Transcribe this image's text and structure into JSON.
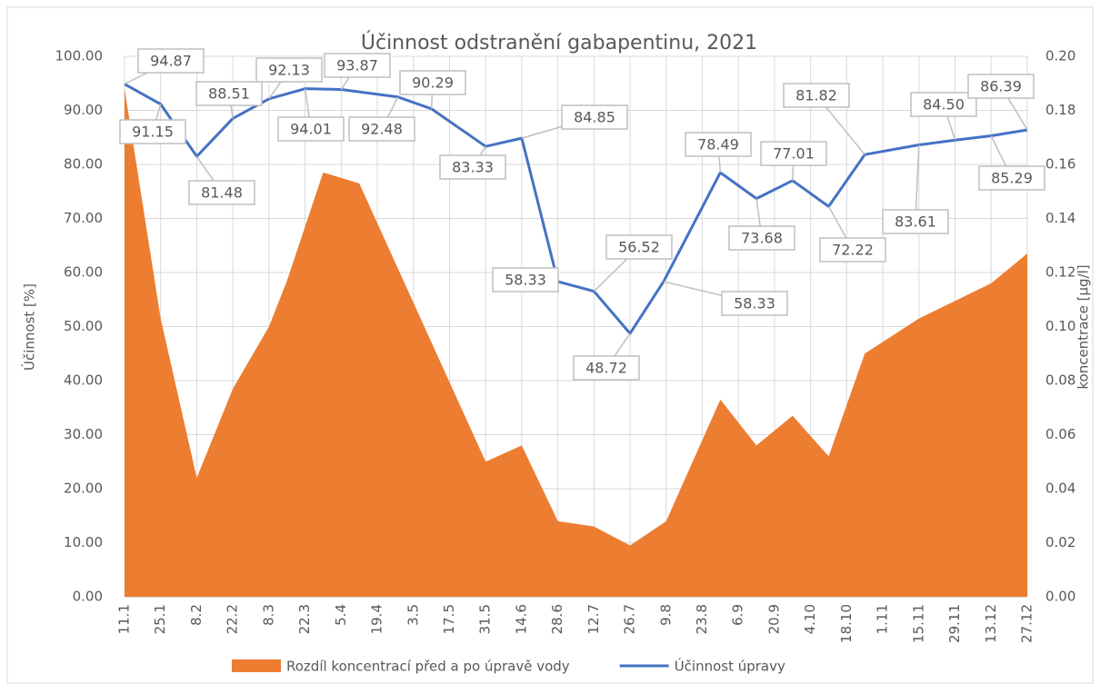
{
  "chart_data": {
    "type": "combo",
    "title": "Účinnost odstranění gabapentinu, 2021",
    "y_label": "Účinnost  [%]",
    "y2_label": "koncentrace [µg/l]",
    "xlim": [
      11,
      361
    ],
    "xticks": [
      {
        "value": 11,
        "label": "11.1"
      },
      {
        "value": 25,
        "label": "25.1"
      },
      {
        "value": 39,
        "label": "8.2"
      },
      {
        "value": 53,
        "label": "22.2"
      },
      {
        "value": 67,
        "label": "8.3"
      },
      {
        "value": 81,
        "label": "22.3"
      },
      {
        "value": 95,
        "label": "5.4"
      },
      {
        "value": 109,
        "label": "19.4"
      },
      {
        "value": 123,
        "label": "3.5"
      },
      {
        "value": 137,
        "label": "17.5"
      },
      {
        "value": 151,
        "label": "31.5"
      },
      {
        "value": 165,
        "label": "14.6"
      },
      {
        "value": 179,
        "label": "28.6"
      },
      {
        "value": 193,
        "label": "12.7"
      },
      {
        "value": 207,
        "label": "26.7"
      },
      {
        "value": 221,
        "label": "9.8"
      },
      {
        "value": 235,
        "label": "23.8"
      },
      {
        "value": 249,
        "label": "6.9"
      },
      {
        "value": 263,
        "label": "20.9"
      },
      {
        "value": 277,
        "label": "4.10"
      },
      {
        "value": 291,
        "label": "18.10"
      },
      {
        "value": 305,
        "label": "1.11"
      },
      {
        "value": 319,
        "label": "15.11"
      },
      {
        "value": 333,
        "label": "29.11"
      },
      {
        "value": 347,
        "label": "13.12"
      },
      {
        "value": 361,
        "label": "27.12"
      }
    ],
    "ylim": [
      0,
      100
    ],
    "yticks": [
      {
        "value": 0,
        "label": "0.00"
      },
      {
        "value": 10,
        "label": "10.00"
      },
      {
        "value": 20,
        "label": "20.00"
      },
      {
        "value": 30,
        "label": "30.00"
      },
      {
        "value": 40,
        "label": "40.00"
      },
      {
        "value": 50,
        "label": "50.00"
      },
      {
        "value": 60,
        "label": "60.00"
      },
      {
        "value": 70,
        "label": "70.00"
      },
      {
        "value": 80,
        "label": "80.00"
      },
      {
        "value": 90,
        "label": "90.00"
      },
      {
        "value": 100,
        "label": "100.00"
      }
    ],
    "y2lim": [
      0,
      0.2
    ],
    "y2ticks": [
      {
        "value": 0,
        "label": "0.00"
      },
      {
        "value": 0.02,
        "label": "0.02"
      },
      {
        "value": 0.04,
        "label": "0.04"
      },
      {
        "value": 0.06,
        "label": "0.06"
      },
      {
        "value": 0.08,
        "label": "0.08"
      },
      {
        "value": 0.1,
        "label": "0.10"
      },
      {
        "value": 0.12,
        "label": "0.12"
      },
      {
        "value": 0.14,
        "label": "0.14"
      },
      {
        "value": 0.16,
        "label": "0.16"
      },
      {
        "value": 0.18,
        "label": "0.18"
      },
      {
        "value": 0.2,
        "label": "0.20"
      }
    ],
    "grid": true,
    "legend": "bottom",
    "series": [
      {
        "name": "Rozdíl koncentrací před a po úpravě vody",
        "type": "area",
        "axis": "y2",
        "color": "#ed7d31",
        "x": [
          11,
          25,
          39,
          53,
          67,
          74,
          88,
          102,
          151,
          165,
          179,
          193,
          207,
          221,
          242,
          256,
          270,
          284,
          298,
          319,
          347,
          361
        ],
        "values": [
          0.188,
          0.103,
          0.044,
          0.077,
          0.1,
          0.117,
          0.157,
          0.153,
          0.05,
          0.056,
          0.028,
          0.026,
          0.019,
          0.028,
          0.073,
          0.056,
          0.067,
          0.052,
          0.09,
          0.103,
          0.116,
          0.127
        ]
      },
      {
        "name": "Účinnost úpravy",
        "type": "line",
        "axis": "y",
        "color": "#4472c4",
        "x": [
          11,
          25,
          39,
          53,
          67,
          81,
          95,
          117,
          130,
          151,
          165,
          179,
          193,
          207,
          220,
          242,
          256,
          270,
          284,
          298,
          319,
          333,
          347,
          361
        ],
        "values": [
          94.87,
          91.15,
          81.48,
          88.51,
          92.13,
          94.01,
          93.87,
          92.48,
          90.29,
          83.33,
          84.85,
          58.33,
          56.52,
          48.72,
          58.33,
          78.49,
          73.68,
          77.01,
          72.22,
          81.82,
          83.61,
          84.5,
          85.29,
          86.39
        ],
        "value_labels": [
          "94.87",
          "91.15",
          "81.48",
          "88.51",
          "92.13",
          "94.01",
          "93.87",
          "92.48",
          "90.29",
          "83.33",
          "84.85",
          "58.33",
          "56.52",
          "48.72",
          "58.33",
          "78.49",
          "73.68",
          "77.01",
          "72.22",
          "81.82",
          "83.61",
          "84.50",
          "85.29",
          "86.39"
        ]
      }
    ]
  }
}
